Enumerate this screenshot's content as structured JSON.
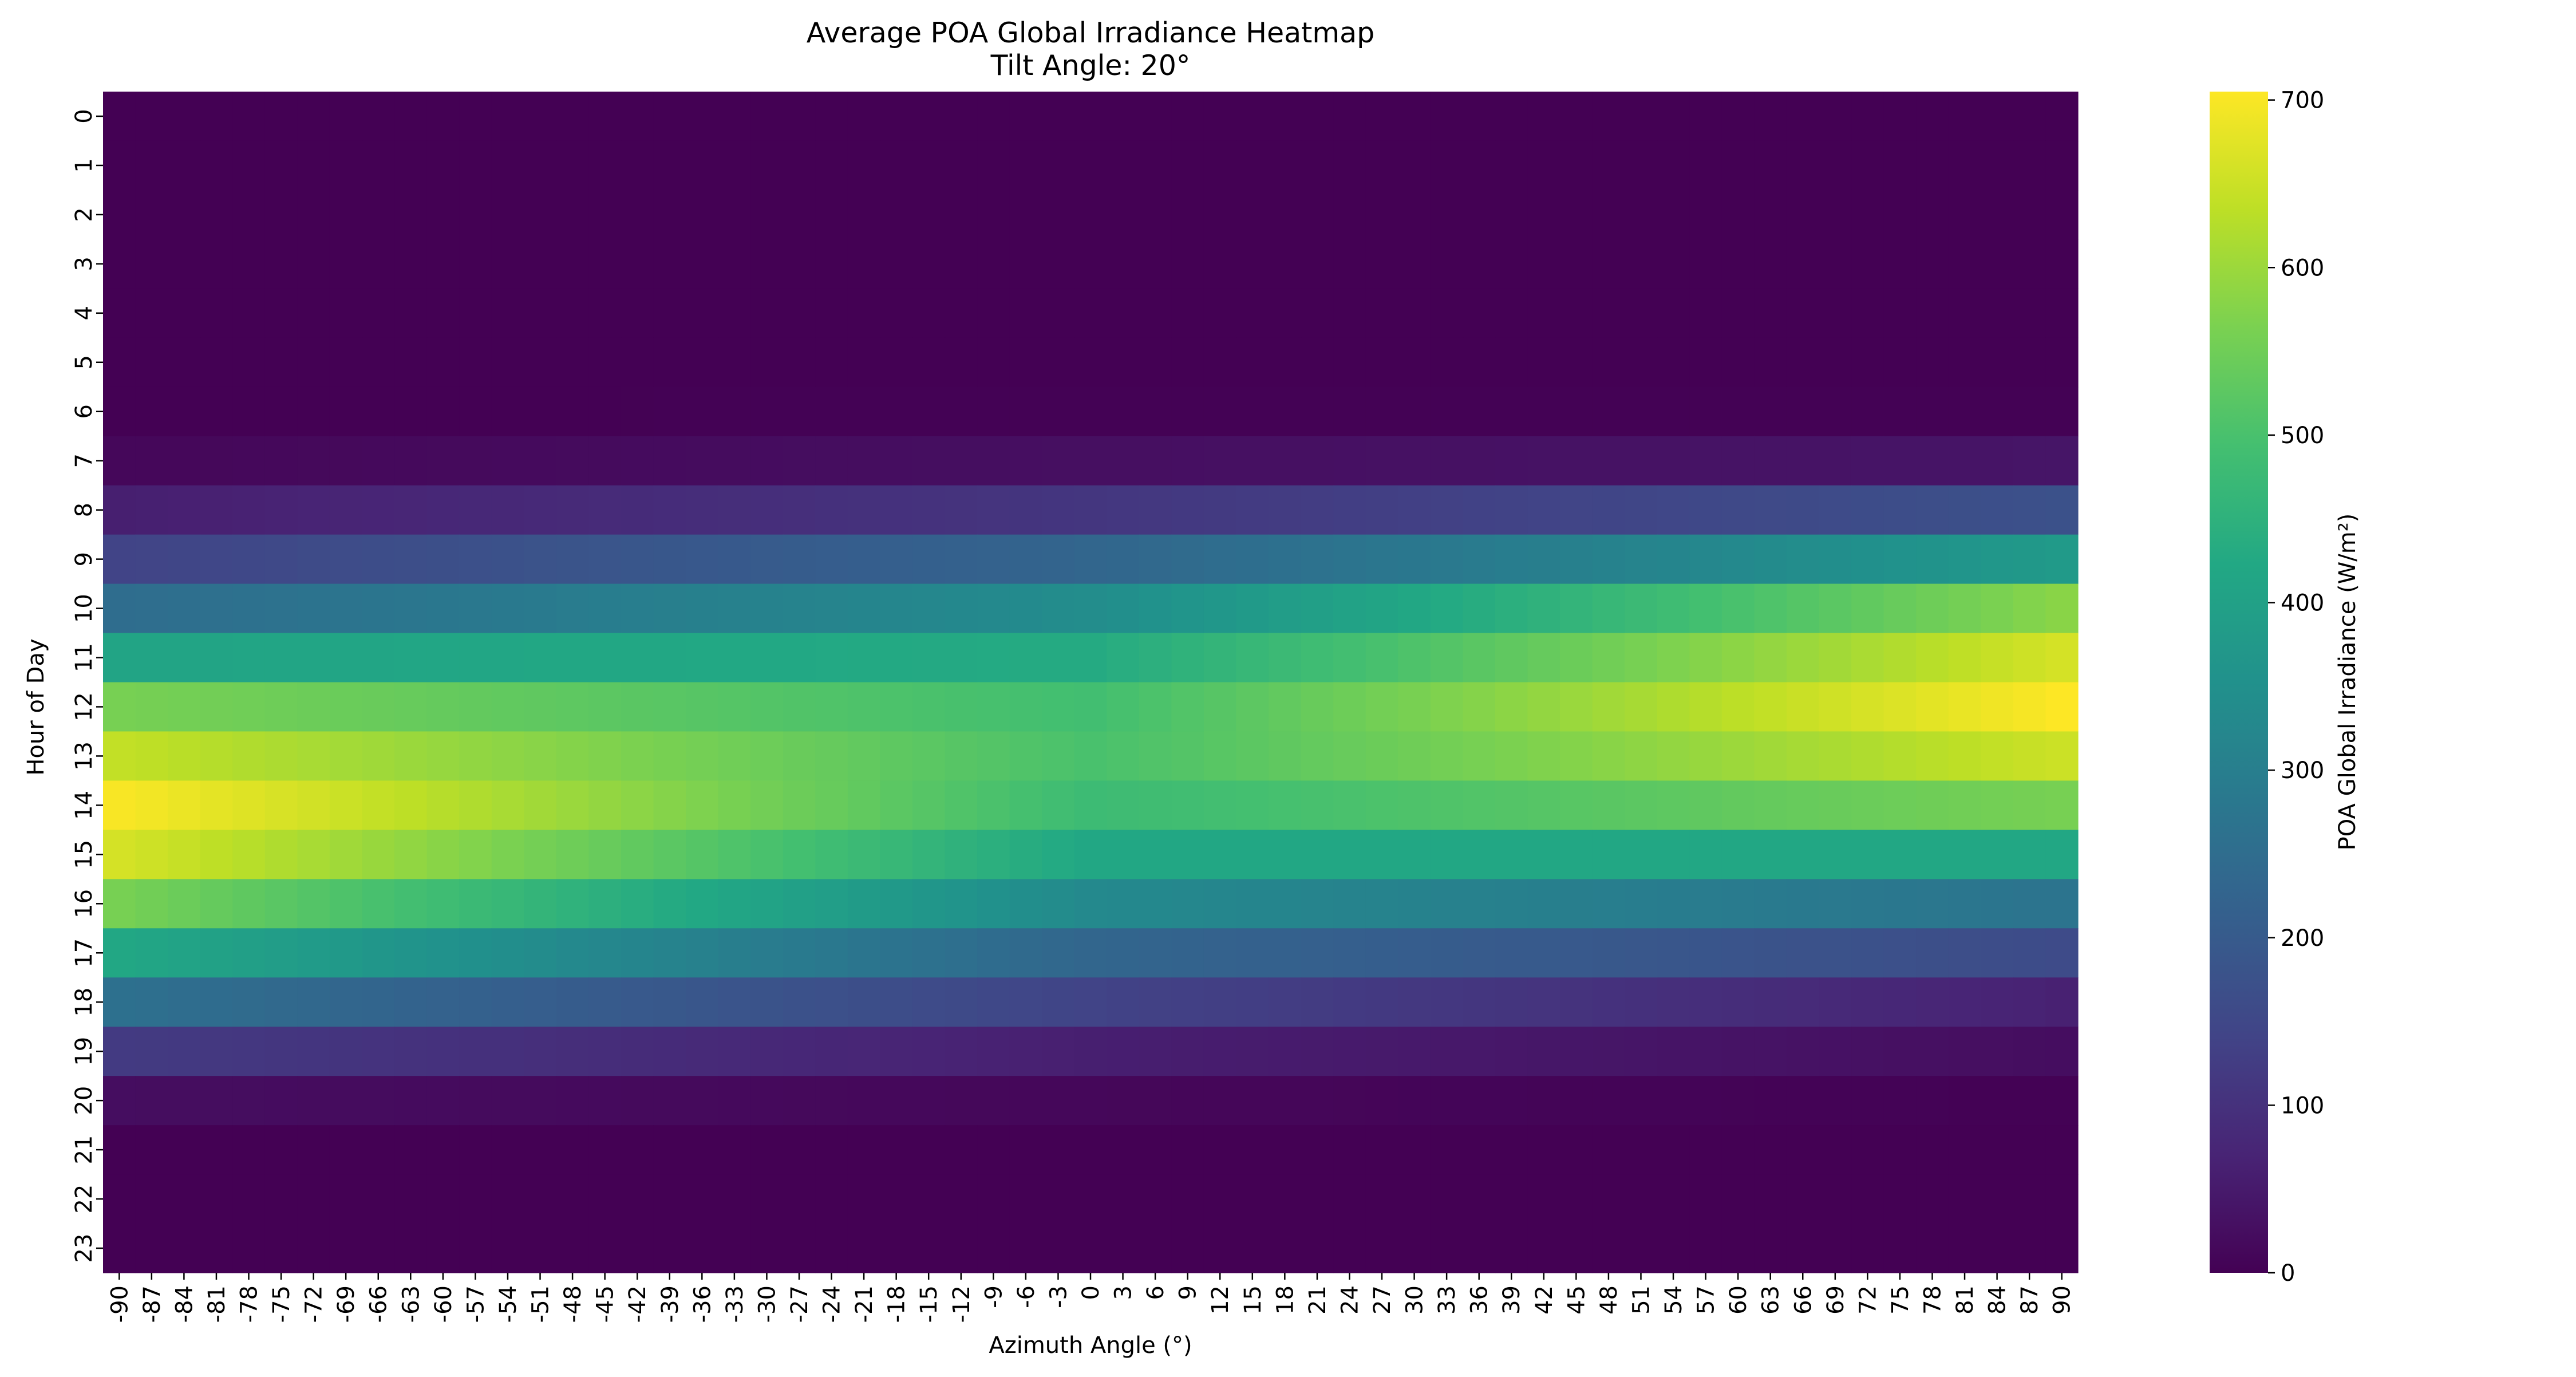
{
  "chart_data": {
    "type": "heatmap",
    "title": "Average POA Global Irradiance Heatmap",
    "subtitle": "Tilt Angle: 20°",
    "xlabel": "Azimuth Angle (°)",
    "ylabel": "Hour of Day",
    "colorbar_label": "POA Global Irradiance (W/m²)",
    "colormap": "viridis",
    "colorbar_range": [
      0,
      705
    ],
    "colorbar_ticks": [
      0,
      100,
      200,
      300,
      400,
      500,
      600,
      700
    ],
    "x": [
      -90,
      -87,
      -84,
      -81,
      -78,
      -75,
      -72,
      -69,
      -66,
      -63,
      -60,
      -57,
      -54,
      -51,
      -48,
      -45,
      -42,
      -39,
      -36,
      -33,
      -30,
      -27,
      -24,
      -21,
      -18,
      -15,
      -12,
      -9,
      -6,
      -3,
      0,
      3,
      6,
      9,
      12,
      15,
      18,
      21,
      24,
      27,
      30,
      33,
      36,
      39,
      42,
      45,
      48,
      51,
      54,
      57,
      60,
      63,
      66,
      69,
      72,
      75,
      78,
      81,
      84,
      87,
      90
    ],
    "y": [
      0,
      1,
      2,
      3,
      4,
      5,
      6,
      7,
      8,
      9,
      10,
      11,
      12,
      13,
      14,
      15,
      16,
      17,
      18,
      19,
      20,
      21,
      22,
      23
    ],
    "hour_profiles": [
      {
        "hour": 0,
        "at_-90": 0,
        "at_0": 0,
        "at_90": 0
      },
      {
        "hour": 1,
        "at_-90": 0,
        "at_0": 0,
        "at_90": 0
      },
      {
        "hour": 2,
        "at_-90": 0,
        "at_0": 0,
        "at_90": 0
      },
      {
        "hour": 3,
        "at_-90": 0,
        "at_0": 0,
        "at_90": 0
      },
      {
        "hour": 4,
        "at_-90": 0,
        "at_0": 0,
        "at_90": 0
      },
      {
        "hour": 5,
        "at_-90": 0,
        "at_0": 0,
        "at_90": 0
      },
      {
        "hour": 6,
        "at_-90": 0,
        "at_0": 2,
        "at_90": 3
      },
      {
        "hour": 7,
        "at_-90": 12,
        "at_0": 28,
        "at_90": 40
      },
      {
        "hour": 8,
        "at_-90": 60,
        "at_0": 110,
        "at_90": 175
      },
      {
        "hour": 9,
        "at_-90": 140,
        "at_0": 230,
        "at_90": 380
      },
      {
        "hour": 10,
        "at_-90": 250,
        "at_0": 340,
        "at_90": 580
      },
      {
        "hour": 11,
        "at_-90": 410,
        "at_0": 430,
        "at_90": 660
      },
      {
        "hour": 12,
        "at_-90": 560,
        "at_0": 490,
        "at_90": 705
      },
      {
        "hour": 13,
        "at_-90": 640,
        "at_0": 500,
        "at_90": 650
      },
      {
        "hour": 14,
        "at_-90": 700,
        "at_0": 480,
        "at_90": 560
      },
      {
        "hour": 15,
        "at_-90": 660,
        "at_0": 420,
        "at_90": 420
      },
      {
        "hour": 16,
        "at_-90": 560,
        "at_0": 330,
        "at_90": 270
      },
      {
        "hour": 17,
        "at_-90": 420,
        "at_0": 230,
        "at_90": 160
      },
      {
        "hour": 18,
        "at_-90": 260,
        "at_0": 140,
        "at_90": 65
      },
      {
        "hour": 19,
        "at_-90": 120,
        "at_0": 60,
        "at_90": 25
      },
      {
        "hour": 20,
        "at_-90": 25,
        "at_0": 12,
        "at_90": 2
      },
      {
        "hour": 21,
        "at_-90": 0,
        "at_0": 0,
        "at_90": 0
      },
      {
        "hour": 22,
        "at_-90": 0,
        "at_0": 0,
        "at_90": 0
      },
      {
        "hour": 23,
        "at_-90": 0,
        "at_0": 0,
        "at_90": 0
      }
    ]
  }
}
